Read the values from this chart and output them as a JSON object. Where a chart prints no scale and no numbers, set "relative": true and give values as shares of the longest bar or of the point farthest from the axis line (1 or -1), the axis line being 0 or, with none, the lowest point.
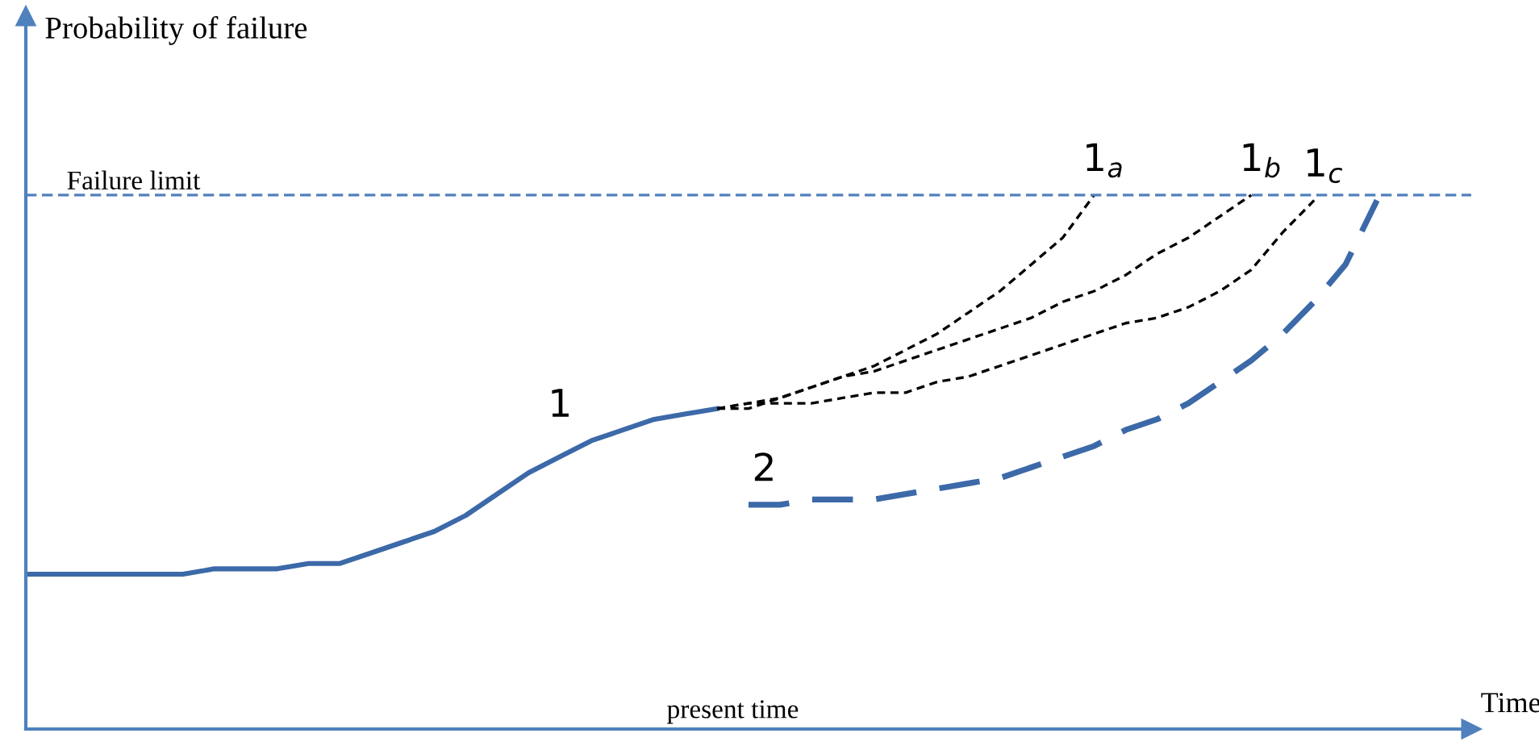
{
  "chart_data": {
    "type": "line",
    "relative": true,
    "ylabel": "Probability of failure",
    "xlabel": "Time",
    "categories": [
      null,
      null,
      null,
      null,
      null,
      null,
      null,
      null,
      null,
      null,
      null,
      null,
      null,
      null,
      null,
      null,
      null,
      null,
      null,
      null,
      null,
      null,
      null,
      null,
      null,
      null,
      null,
      null,
      null,
      null,
      null,
      null,
      null,
      null,
      null,
      null,
      null,
      null,
      null,
      null,
      null,
      null,
      null,
      null,
      null,
      null
    ],
    "series": [
      {
        "name": "1",
        "color": "#3c69a8",
        "line_style": "solid",
        "values": [
          0.29,
          0.29,
          0.29,
          0.29,
          0.29,
          0.29,
          0.3,
          0.3,
          0.3,
          0.31,
          0.31,
          0.33,
          0.35,
          0.37,
          0.4,
          0.44,
          0.48,
          0.51,
          0.54,
          0.56,
          0.58,
          0.59,
          0.6,
          null,
          null,
          null,
          null,
          null,
          null,
          null,
          null,
          null,
          null,
          null,
          null,
          null,
          null,
          null,
          null,
          null,
          null,
          null,
          null,
          null,
          null,
          null
        ]
      },
      {
        "name": "1$_{a}$",
        "color": "#000000",
        "line_style": "dotted",
        "values": [
          null,
          null,
          null,
          null,
          null,
          null,
          null,
          null,
          null,
          null,
          null,
          null,
          null,
          null,
          null,
          null,
          null,
          null,
          null,
          null,
          null,
          null,
          0.6,
          0.6,
          0.62,
          0.64,
          0.66,
          0.68,
          0.71,
          0.74,
          0.78,
          0.82,
          0.87,
          0.92,
          1.0,
          null,
          null,
          null,
          null,
          null,
          null,
          null,
          null,
          null,
          null,
          null
        ]
      },
      {
        "name": "1$_{b}$",
        "color": "#000000",
        "line_style": "dotted",
        "values": [
          null,
          null,
          null,
          null,
          null,
          null,
          null,
          null,
          null,
          null,
          null,
          null,
          null,
          null,
          null,
          null,
          null,
          null,
          null,
          null,
          null,
          null,
          0.6,
          0.61,
          0.62,
          0.64,
          0.66,
          0.67,
          0.69,
          0.71,
          0.73,
          0.75,
          0.77,
          0.8,
          0.82,
          0.85,
          0.89,
          0.92,
          0.96,
          1.0,
          null,
          null,
          null,
          null,
          null,
          null
        ]
      },
      {
        "name": "1$_{c}$",
        "color": "#000000",
        "line_style": "dotted",
        "values": [
          null,
          null,
          null,
          null,
          null,
          null,
          null,
          null,
          null,
          null,
          null,
          null,
          null,
          null,
          null,
          null,
          null,
          null,
          null,
          null,
          null,
          null,
          0.6,
          0.61,
          0.61,
          0.61,
          0.62,
          0.63,
          0.63,
          0.65,
          0.66,
          0.68,
          0.7,
          0.72,
          0.74,
          0.76,
          0.77,
          0.79,
          0.82,
          0.86,
          0.93,
          0.99,
          null,
          null,
          null,
          null
        ]
      },
      {
        "name": "2",
        "color": "#3c69a8",
        "line_style": "dashed",
        "values": [
          null,
          null,
          null,
          null,
          null,
          null,
          null,
          null,
          null,
          null,
          null,
          null,
          null,
          null,
          null,
          null,
          null,
          null,
          null,
          null,
          null,
          null,
          null,
          0.42,
          0.42,
          0.43,
          0.43,
          0.43,
          0.44,
          0.45,
          0.46,
          0.47,
          0.49,
          0.51,
          0.53,
          0.56,
          0.58,
          0.61,
          0.65,
          0.69,
          0.74,
          0.8,
          0.87,
          0.99,
          null,
          null
        ]
      }
    ],
    "ref_lines": [
      {
        "axis": "y",
        "value": 1.0,
        "label": "Failure limit",
        "color": "#4f81bd",
        "line_style": "dashed"
      }
    ],
    "annotations": [
      "present time"
    ],
    "tick_labels": false,
    "legend": false
  }
}
